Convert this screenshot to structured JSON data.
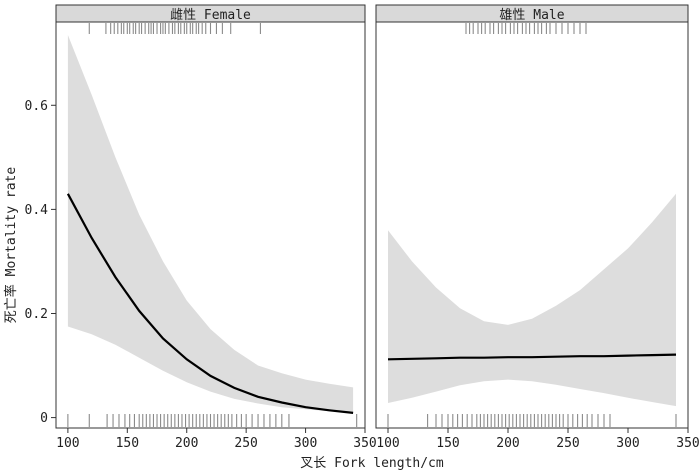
{
  "chart_data": {
    "type": "line",
    "xlabel": "叉长 Fork length/cm",
    "ylabel": "死亡率 Mortality rate",
    "xlim": [
      90,
      350
    ],
    "ylim": [
      -0.02,
      0.76
    ],
    "xticks": [
      100,
      150,
      200,
      250,
      300,
      350
    ],
    "xtick_labels": [
      "100",
      "150",
      "200",
      "250",
      "300",
      "350"
    ],
    "yticks": [
      0,
      0.2,
      0.4,
      0.6
    ],
    "ytick_labels": [
      "0",
      "0.2",
      "0.4",
      "0.6"
    ],
    "grid": false,
    "legend": "none",
    "colors": {
      "line": "#000000",
      "band": "#dddddd",
      "rug": "#8a8a8a",
      "strip_bg": "#d9d9d9",
      "frame": "#333333"
    },
    "panels": [
      {
        "strip_label": "雌性 Female",
        "x": [
          100,
          120,
          140,
          160,
          180,
          200,
          220,
          240,
          260,
          280,
          300,
          320,
          340
        ],
        "fit": [
          0.43,
          0.345,
          0.27,
          0.205,
          0.152,
          0.112,
          0.08,
          0.057,
          0.04,
          0.029,
          0.02,
          0.014,
          0.009
        ],
        "upper": [
          0.735,
          0.62,
          0.5,
          0.39,
          0.3,
          0.225,
          0.17,
          0.13,
          0.1,
          0.085,
          0.073,
          0.065,
          0.058
        ],
        "lower": [
          0.175,
          0.16,
          0.14,
          0.115,
          0.09,
          0.068,
          0.05,
          0.036,
          0.027,
          0.02,
          0.016,
          0.012,
          0.009
        ],
        "rug_top": [
          118,
          132,
          136,
          139,
          142,
          145,
          147,
          150,
          152,
          155,
          157,
          160,
          162,
          165,
          168,
          170,
          172,
          175,
          178,
          180,
          182,
          185,
          188,
          190,
          193,
          195,
          198,
          200,
          203,
          205,
          208,
          210,
          213,
          216,
          220,
          225,
          230,
          237,
          262
        ],
        "rug_bottom": [
          100,
          118,
          133,
          138,
          143,
          148,
          152,
          156,
          160,
          163,
          166,
          169,
          172,
          175,
          178,
          181,
          184,
          187,
          190,
          193,
          196,
          199,
          202,
          205,
          208,
          211,
          214,
          217,
          220,
          223,
          226,
          229,
          232,
          235,
          238,
          242,
          246,
          250,
          255,
          260,
          265,
          270,
          275,
          280,
          286,
          343
        ]
      },
      {
        "strip_label": "雄性 Male",
        "x": [
          100,
          120,
          140,
          160,
          180,
          200,
          220,
          240,
          260,
          280,
          300,
          320,
          340
        ],
        "fit": [
          0.112,
          0.113,
          0.114,
          0.115,
          0.115,
          0.116,
          0.116,
          0.117,
          0.118,
          0.118,
          0.119,
          0.12,
          0.121
        ],
        "upper": [
          0.36,
          0.3,
          0.25,
          0.21,
          0.185,
          0.178,
          0.19,
          0.215,
          0.245,
          0.285,
          0.325,
          0.375,
          0.43
        ],
        "lower": [
          0.028,
          0.038,
          0.05,
          0.062,
          0.07,
          0.073,
          0.07,
          0.063,
          0.055,
          0.047,
          0.038,
          0.03,
          0.022
        ],
        "rug_top": [
          165,
          168,
          171,
          175,
          178,
          181,
          185,
          188,
          192,
          195,
          198,
          202,
          205,
          208,
          212,
          215,
          218,
          222,
          225,
          228,
          232,
          235,
          240,
          245,
          250,
          255,
          260,
          265
        ],
        "rug_bottom": [
          100,
          133,
          140,
          145,
          150,
          154,
          158,
          162,
          166,
          170,
          174,
          177,
          180,
          183,
          186,
          189,
          192,
          195,
          198,
          201,
          204,
          207,
          210,
          213,
          216,
          219,
          222,
          225,
          228,
          231,
          234,
          237,
          240,
          243,
          246,
          250,
          254,
          258,
          262,
          266,
          270,
          275,
          280,
          285,
          340
        ]
      }
    ]
  }
}
